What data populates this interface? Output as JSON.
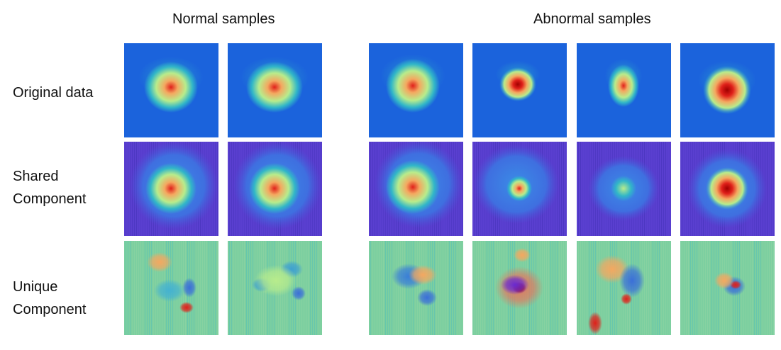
{
  "headers": {
    "normal": "Normal samples",
    "abnormal": "Abnormal samples"
  },
  "rows": [
    {
      "label_lines": [
        "Original data"
      ]
    },
    {
      "label_lines": [
        "Shared",
        "Component"
      ]
    },
    {
      "label_lines": [
        "Unique",
        "Component"
      ]
    }
  ],
  "columns": [
    {
      "group": "normal",
      "index": 1
    },
    {
      "group": "normal",
      "index": 2
    },
    {
      "group": "abnormal",
      "index": 1
    },
    {
      "group": "abnormal",
      "index": 2
    },
    {
      "group": "abnormal",
      "index": 3
    },
    {
      "group": "abnormal",
      "index": 4
    }
  ],
  "colors": {
    "original_background": "#1b63dc",
    "shared_background": "#5a3fd0",
    "unique_background": "#7ccfa0",
    "hot": "#e0201a",
    "warm": "#f4a860",
    "mid": "#b8ec8c",
    "cool": "#31b6c8",
    "dark_red": "#a00000"
  }
}
